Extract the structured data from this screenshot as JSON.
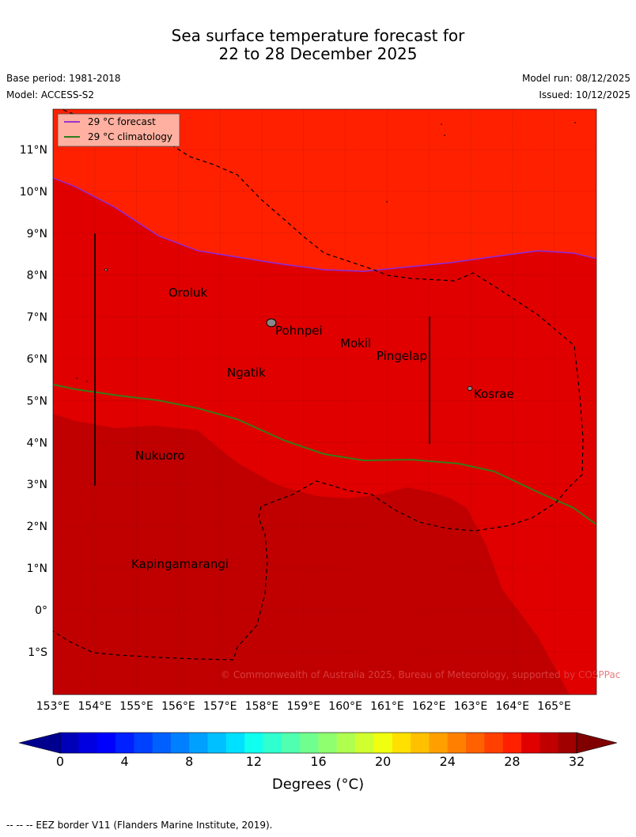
{
  "title_line1": "Sea surface temperature forecast for",
  "title_line2": "22 to 28 December 2025",
  "base_period": "Base period: 1981-2018",
  "model": "Model: ACCESS-S2",
  "model_run": "Model run: 08/12/2025",
  "issued": "Issued: 10/12/2025",
  "legend": {
    "forecast_label": "29 °C  forecast",
    "climatology_label": "29 °C  climatology",
    "forecast_color": "#9933cc",
    "climatology_color": "#2e7d1e"
  },
  "axes": {
    "lon_ticks": [
      "153°E",
      "154°E",
      "155°E",
      "156°E",
      "157°E",
      "158°E",
      "159°E",
      "160°E",
      "161°E",
      "162°E",
      "163°E",
      "164°E",
      "165°E"
    ],
    "lat_ticks": [
      "11°N",
      "10°N",
      "9°N",
      "8°N",
      "7°N",
      "6°N",
      "5°N",
      "4°N",
      "3°N",
      "2°N",
      "1°N",
      "0°",
      "1°S"
    ]
  },
  "places": [
    "Oroluk",
    "Pohnpei",
    "Mokil",
    "Pingelap",
    "Ngatik",
    "Kosrae",
    "Nukuoro",
    "Kapingamarangi"
  ],
  "copyright": "© Commonwealth of Australia 2025, Bureau of Meteorology, supported by COSPPac",
  "colorbar": {
    "tick_labels": [
      "0",
      "4",
      "8",
      "12",
      "16",
      "20",
      "24",
      "28",
      "32"
    ],
    "title": "Degrees (°C)",
    "colors": [
      "#00008f",
      "#0000b8",
      "#0000e0",
      "#0000ff",
      "#0020ff",
      "#0040ff",
      "#0060ff",
      "#0080ff",
      "#00a0ff",
      "#00c0ff",
      "#00e0ff",
      "#10ffef",
      "#30ffcf",
      "#50ffaf",
      "#70ff8f",
      "#90ff6f",
      "#b0ff4f",
      "#d0ff2f",
      "#f0ff0f",
      "#ffe000",
      "#ffc000",
      "#ffa000",
      "#ff8000",
      "#ff6000",
      "#ff4000",
      "#ff2000",
      "#e00000",
      "#c00000",
      "#a00000",
      "#800000"
    ]
  },
  "footer": "-- -- -- EEZ border V11 (Flanders Marine Institute, 2019)."
}
